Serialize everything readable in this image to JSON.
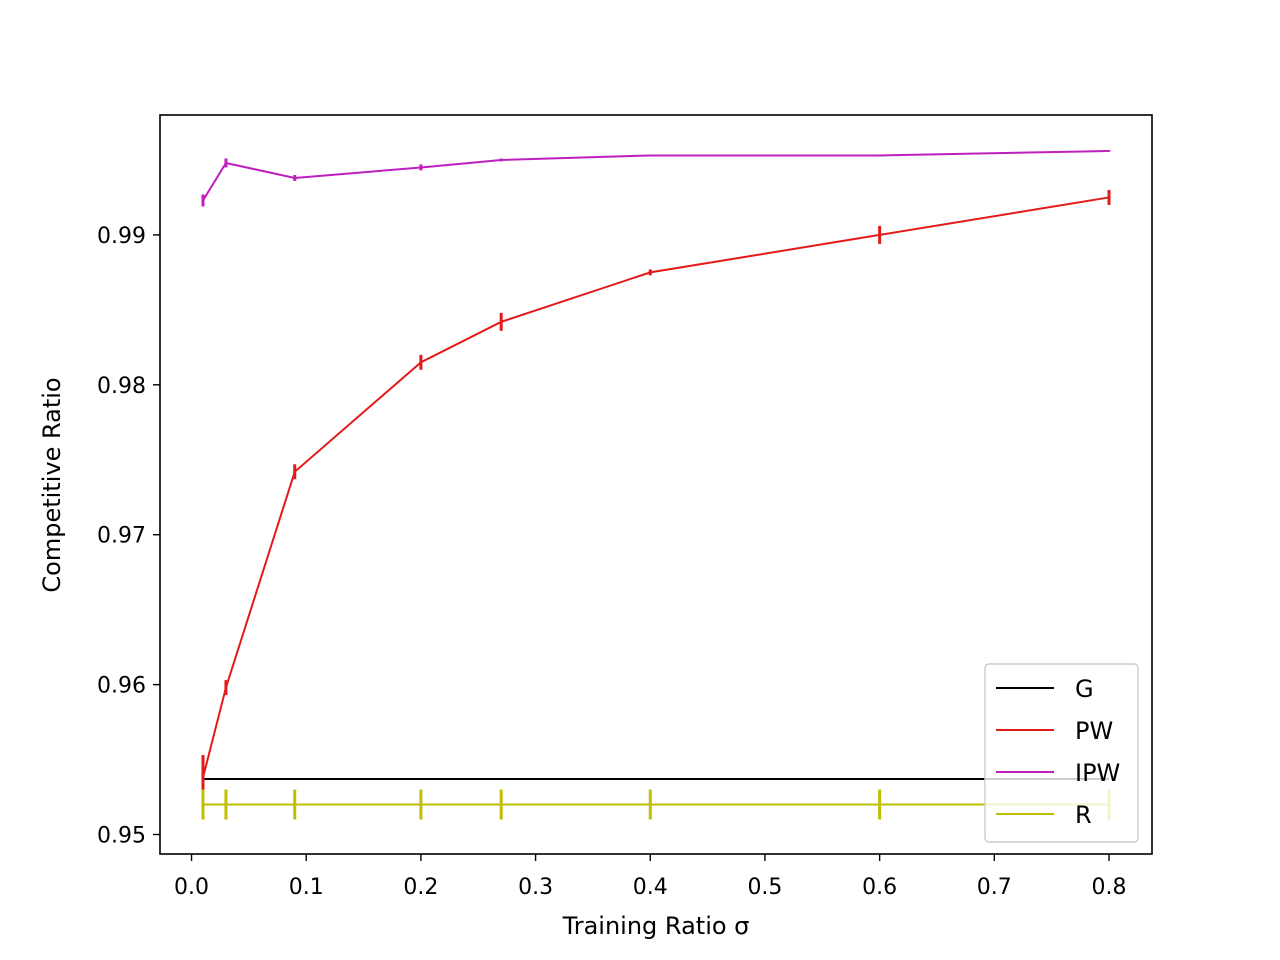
{
  "chart_data": {
    "type": "line",
    "title": "",
    "xlabel": "Training Ratio σ",
    "ylabel": "Competitive Ratio",
    "xlim": [
      -0.0275,
      0.8375
    ],
    "ylim": [
      0.9487,
      0.998
    ],
    "xticks": [
      0.0,
      0.1,
      0.2,
      0.3,
      0.4,
      0.5,
      0.6,
      0.7,
      0.8
    ],
    "xtick_labels": [
      "0.0",
      "0.1",
      "0.2",
      "0.3",
      "0.4",
      "0.5",
      "0.6",
      "0.7",
      "0.8"
    ],
    "yticks": [
      0.95,
      0.96,
      0.97,
      0.98,
      0.99
    ],
    "ytick_labels": [
      "0.95",
      "0.96",
      "0.97",
      "0.98",
      "0.99"
    ],
    "grid": false,
    "legend_position": "lower-right",
    "x": [
      0.01,
      0.03,
      0.09,
      0.2,
      0.27,
      0.4,
      0.6,
      0.8
    ],
    "series": [
      {
        "name": "G",
        "color": "#000000",
        "values": [
          0.9537,
          0.9537,
          0.9537,
          0.9537,
          0.9537,
          0.9537,
          0.9537,
          0.9537
        ],
        "errors": [
          0,
          0,
          0,
          0,
          0,
          0,
          0,
          0
        ]
      },
      {
        "name": "PW",
        "color": "#e41a1a",
        "values": [
          0.9538,
          0.9598,
          0.9742,
          0.9815,
          0.9842,
          0.9875,
          0.99,
          0.9925
        ],
        "errors": [
          0.0015,
          0.0005,
          0.0005,
          0.0005,
          0.0006,
          0.0002,
          0.0006,
          0.0005
        ]
      },
      {
        "name": "IPW",
        "color": "#bf1fbf",
        "values": [
          0.9923,
          0.9948,
          0.9938,
          0.9945,
          0.995,
          0.9953,
          0.9953,
          0.9956
        ],
        "errors": [
          0.0004,
          0.0003,
          0.0002,
          0.0002,
          0.0001,
          5e-05,
          5e-05,
          5e-05
        ]
      },
      {
        "name": "R",
        "color": "#bfbf00",
        "values": [
          0.952,
          0.952,
          0.952,
          0.952,
          0.952,
          0.952,
          0.952,
          0.952
        ],
        "errors": [
          0.001,
          0.001,
          0.001,
          0.001,
          0.001,
          0.001,
          0.001,
          0.001
        ]
      }
    ]
  }
}
